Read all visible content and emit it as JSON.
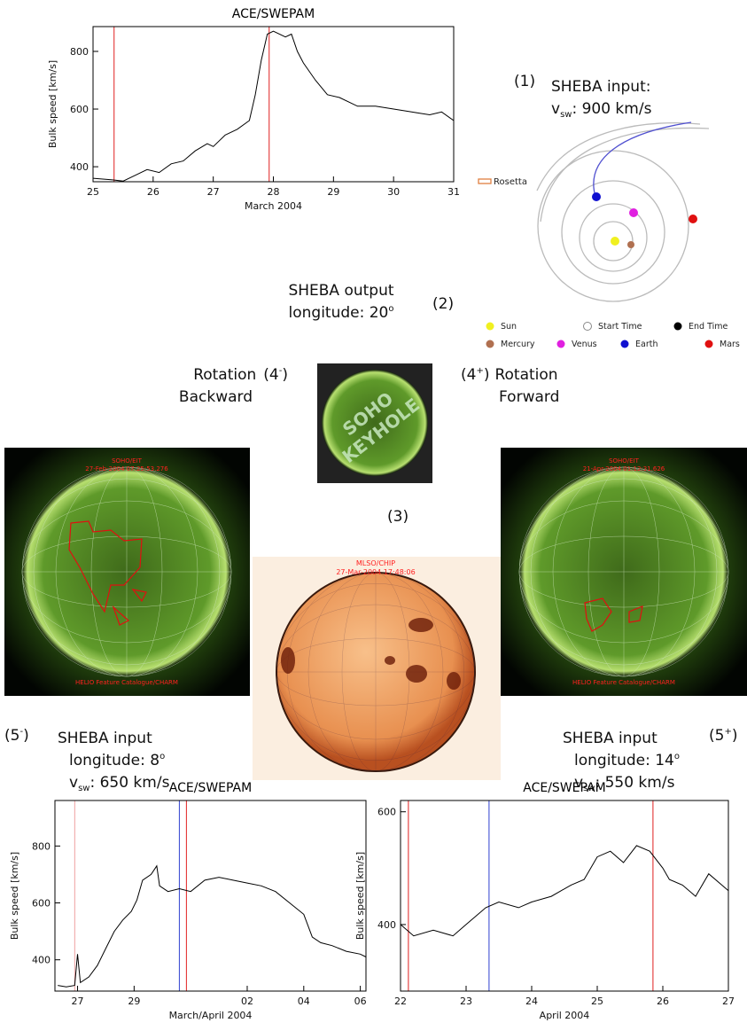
{
  "chart_data": [
    {
      "type": "line",
      "title": "ACE/SWEPAM",
      "x_label": "March 2004",
      "y_label": "Bulk speed [km/s]",
      "color": "#000000",
      "x": [
        25.0,
        25.3,
        25.5,
        25.7,
        25.9,
        26.1,
        26.3,
        26.5,
        26.7,
        26.9,
        27.0,
        27.2,
        27.4,
        27.6,
        27.7,
        27.8,
        27.9,
        28.0,
        28.2,
        28.3,
        28.4,
        28.5,
        28.7,
        28.9,
        29.1,
        29.4,
        29.7,
        30.0,
        30.3,
        30.6,
        30.8,
        31.0
      ],
      "values": [
        360,
        355,
        350,
        370,
        390,
        380,
        410,
        420,
        455,
        480,
        470,
        510,
        530,
        560,
        650,
        770,
        860,
        870,
        850,
        860,
        800,
        760,
        700,
        650,
        640,
        610,
        610,
        600,
        590,
        580,
        590,
        560
      ],
      "xlim": [
        25,
        31
      ],
      "xticks": [
        25,
        26,
        27,
        28,
        29,
        30,
        31
      ],
      "ylim": [
        348,
        886
      ],
      "yticks": [
        400,
        600,
        800
      ],
      "vlines": [
        {
          "x": 25.35,
          "color": "#e02020"
        },
        {
          "x": 27.93,
          "color": "#e02020"
        }
      ]
    },
    {
      "type": "line",
      "title": "ACE/SWEPAM",
      "x_label": "March/April 2004",
      "y_label": "Bulk speed [km/s]",
      "color": "#000000",
      "x": [
        26.3,
        26.6,
        26.9,
        27.0,
        27.1,
        27.4,
        27.7,
        28.0,
        28.3,
        28.6,
        28.9,
        29.1,
        29.3,
        29.6,
        29.8,
        29.9,
        30.2,
        30.6,
        31.0,
        31.5,
        32.0,
        32.5,
        33.0,
        33.5,
        34.0,
        34.5,
        35.0,
        35.3,
        35.6,
        36.0,
        36.5,
        37.0,
        37.2
      ],
      "values": [
        310,
        305,
        310,
        420,
        320,
        340,
        380,
        440,
        500,
        540,
        570,
        610,
        680,
        700,
        730,
        660,
        640,
        650,
        640,
        680,
        690,
        680,
        670,
        660,
        640,
        600,
        560,
        480,
        460,
        450,
        430,
        420,
        410
      ],
      "xlim": [
        26.2,
        37.2
      ],
      "xticks": [
        27,
        29,
        {
          "value": 33,
          "label": "02"
        },
        {
          "value": 35,
          "label": "04"
        },
        {
          "value": 37,
          "label": "06"
        }
      ],
      "ylim": [
        290,
        960
      ],
      "yticks": [
        400,
        600,
        800
      ],
      "vlines": [
        {
          "x": 26.9,
          "color": "#f0a0a0"
        },
        {
          "x": 30.6,
          "color": "#3040d0"
        },
        {
          "x": 30.85,
          "color": "#e02020"
        }
      ]
    },
    {
      "type": "line",
      "title": "ACE/SWEPAM",
      "x_label": "April 2004",
      "y_label": "Bulk speed [km/s]",
      "color": "#000000",
      "x": [
        22.0,
        22.2,
        22.5,
        22.8,
        23.0,
        23.3,
        23.5,
        23.8,
        24.0,
        24.3,
        24.6,
        24.8,
        25.0,
        25.2,
        25.4,
        25.6,
        25.8,
        26.0,
        26.1,
        26.3,
        26.5,
        26.7,
        26.9,
        27.0
      ],
      "values": [
        400,
        380,
        390,
        380,
        400,
        430,
        440,
        430,
        440,
        450,
        470,
        480,
        520,
        530,
        510,
        540,
        530,
        500,
        480,
        470,
        450,
        490,
        470,
        460
      ],
      "xlim": [
        22,
        27
      ],
      "xticks": [
        22,
        23,
        24,
        25,
        26,
        27
      ],
      "ylim": [
        282,
        620
      ],
      "yticks": [
        400,
        600
      ],
      "vlines": [
        {
          "x": 22.12,
          "color": "#e02020"
        },
        {
          "x": 23.35,
          "color": "#3040d0"
        },
        {
          "x": 25.85,
          "color": "#e02020"
        }
      ]
    }
  ],
  "diagram": {
    "step1": {
      "label": "(1)",
      "text": "SHEBA input:",
      "v": "v",
      "sub": "sw",
      "speed": ": 900 km/s"
    },
    "orbit": {
      "rosetta": "Rosetta",
      "legend": [
        "Sun",
        "Start Time",
        "End Time",
        "Mercury",
        "Venus",
        "Earth",
        "Mars"
      ]
    },
    "step2": {
      "label": "(2)",
      "text": "SHEBA output",
      "lon": "longitude: 20",
      "sup": "o"
    },
    "back": {
      "text": "Rotation",
      "num": "(4",
      "sup": "-",
      "close": ")",
      "dir": "Backward"
    },
    "fwd": {
      "num": "(4",
      "sup": "+",
      "close": ")",
      "text": "Rotation",
      "dir": "Forward"
    },
    "keyhole": [
      "SOHO",
      "KEYHOLE"
    ],
    "step3": "(3)",
    "left_image": {
      "source": "SOHO/EIT",
      "time": "27-Feb-2004 07:25:53.276",
      "credit": "HELIO Feature Catalogue/CHARM"
    },
    "right_image": {
      "source": "SOHO/EIT",
      "time": "21-Apr-2004 01:12:31.626",
      "credit": "HELIO Feature Catalogue/CHARM"
    },
    "center_image": {
      "source": "MLSO/CHIP",
      "time": "27-Mar-2004 17:48:06"
    },
    "step5m": {
      "num": "(5",
      "sup": "-",
      "close": ")",
      "text": "SHEBA input",
      "lon": "longitude: 8",
      "lsup": "o",
      "v": "v",
      "sub": "sw",
      "speed": ": 650 km/s"
    },
    "step5p": {
      "num": "(5",
      "sup": "+",
      "close": ")",
      "text": "SHEBA input",
      "lon": "longitude: 14",
      "lsup": "o",
      "v": "v",
      "sub": "sw",
      "speed": ": 550 km/s"
    }
  }
}
